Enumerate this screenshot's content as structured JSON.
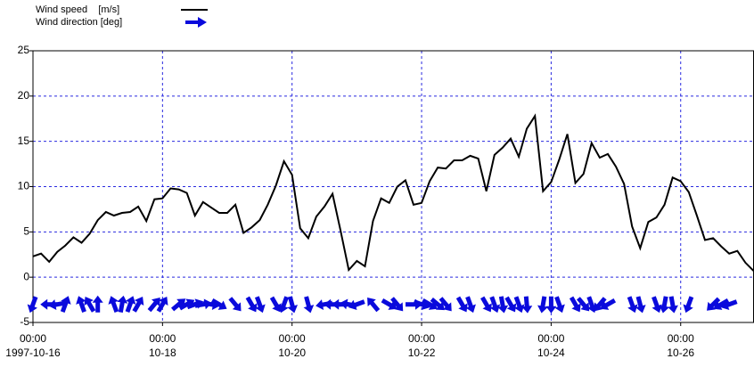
{
  "chart_data": {
    "type": "line",
    "x": [
      "1997-10-16 00:00",
      "1997-10-16 03:00",
      "1997-10-16 06:00",
      "1997-10-16 09:00",
      "1997-10-16 12:00",
      "1997-10-16 15:00",
      "1997-10-16 18:00",
      "1997-10-16 21:00",
      "1997-10-17 00:00",
      "1997-10-17 03:00",
      "1997-10-17 06:00",
      "1997-10-17 09:00",
      "1997-10-17 12:00",
      "1997-10-17 15:00",
      "1997-10-17 18:00",
      "1997-10-17 21:00",
      "1997-10-18 00:00",
      "1997-10-18 03:00",
      "1997-10-18 06:00",
      "1997-10-18 09:00",
      "1997-10-18 12:00",
      "1997-10-18 15:00",
      "1997-10-18 18:00",
      "1997-10-18 21:00",
      "1997-10-19 00:00",
      "1997-10-19 03:00",
      "1997-10-19 06:00",
      "1997-10-19 09:00",
      "1997-10-19 12:00",
      "1997-10-19 15:00",
      "1997-10-19 18:00",
      "1997-10-19 21:00",
      "1997-10-20 00:00",
      "1997-10-20 03:00",
      "1997-10-20 06:00",
      "1997-10-20 09:00",
      "1997-10-20 12:00",
      "1997-10-20 15:00",
      "1997-10-20 18:00",
      "1997-10-20 21:00",
      "1997-10-21 00:00",
      "1997-10-21 03:00",
      "1997-10-21 06:00",
      "1997-10-21 09:00",
      "1997-10-21 12:00",
      "1997-10-21 15:00",
      "1997-10-21 18:00",
      "1997-10-21 21:00",
      "1997-10-22 00:00",
      "1997-10-22 03:00",
      "1997-10-22 06:00",
      "1997-10-22 09:00",
      "1997-10-22 12:00",
      "1997-10-22 15:00",
      "1997-10-22 18:00",
      "1997-10-22 21:00",
      "1997-10-23 00:00",
      "1997-10-23 03:00",
      "1997-10-23 06:00",
      "1997-10-23 09:00",
      "1997-10-23 12:00",
      "1997-10-23 15:00",
      "1997-10-23 18:00",
      "1997-10-23 21:00",
      "1997-10-24 00:00",
      "1997-10-24 03:00",
      "1997-10-24 06:00",
      "1997-10-24 09:00",
      "1997-10-24 12:00",
      "1997-10-24 15:00",
      "1997-10-24 18:00",
      "1997-10-24 21:00",
      "1997-10-25 00:00",
      "1997-10-25 03:00",
      "1997-10-25 06:00",
      "1997-10-25 09:00",
      "1997-10-25 12:00",
      "1997-10-25 15:00",
      "1997-10-25 18:00",
      "1997-10-25 21:00",
      "1997-10-26 00:00",
      "1997-10-26 03:00",
      "1997-10-26 06:00",
      "1997-10-26 09:00",
      "1997-10-26 12:00",
      "1997-10-26 15:00",
      "1997-10-26 18:00",
      "1997-10-26 21:00",
      "1997-10-27 00:00",
      "1997-10-27 03:00"
    ],
    "series": [
      {
        "name": "Wind speed    [m/s]",
        "color": "#000000",
        "values": [
          2.3,
          2.6,
          1.7,
          2.8,
          3.5,
          4.4,
          3.8,
          4.8,
          6.3,
          7.2,
          6.8,
          7.1,
          7.2,
          7.8,
          6.2,
          8.6,
          8.7,
          9.8,
          9.7,
          9.3,
          6.8,
          8.3,
          7.7,
          7.1,
          7.1,
          8.0,
          4.9,
          5.5,
          6.3,
          8.0,
          10.1,
          12.8,
          11.3,
          5.4,
          4.3,
          6.7,
          7.8,
          9.2,
          5.1,
          0.8,
          1.8,
          1.2,
          6.2,
          8.7,
          8.2,
          10.0,
          10.7,
          8.0,
          8.2,
          10.6,
          12.1,
          12.0,
          12.9,
          12.9,
          13.4,
          13.1,
          9.5,
          13.5,
          14.3,
          15.3,
          13.3,
          16.4,
          17.8,
          9.5,
          10.5,
          13.0,
          15.8,
          10.4,
          11.4,
          14.8,
          13.2,
          13.6,
          12.2,
          10.3,
          5.6,
          3.2,
          6.1,
          6.6,
          8.0,
          11.0,
          10.6,
          9.4,
          6.8,
          4.1,
          4.3,
          3.4,
          2.6,
          2.9,
          1.6,
          0.7
        ]
      },
      {
        "name": "Wind direction [deg]",
        "color": "#0a0adc",
        "values": [
          200,
          null,
          270,
          260,
          20,
          null,
          340,
          330,
          0,
          null,
          340,
          10,
          20,
          30,
          null,
          40,
          30,
          null,
          50,
          60,
          70,
          80,
          100,
          120,
          null,
          140,
          null,
          150,
          160,
          null,
          150,
          200,
          165,
          null,
          165,
          null,
          260,
          270,
          270,
          280,
          250,
          null,
          320,
          null,
          120,
          140,
          null,
          90,
          110,
          120,
          130,
          140,
          null,
          150,
          160,
          null,
          150,
          160,
          170,
          150,
          160,
          175,
          null,
          190,
          180,
          160,
          null,
          150,
          140,
          160,
          220,
          240,
          null,
          null,
          160,
          165,
          null,
          160,
          190,
          170,
          null,
          200,
          null,
          null,
          225,
          240,
          250,
          null,
          null,
          null
        ]
      }
    ],
    "xlim": [
      "1997-10-16 00:00",
      "1997-10-27 03:00"
    ],
    "xticks": [
      {
        "value": "1997-10-16 00:00",
        "label": [
          "00:00",
          "1997-10-16"
        ]
      },
      {
        "value": "1997-10-18 00:00",
        "label": [
          "00:00",
          "10-18"
        ]
      },
      {
        "value": "1997-10-20 00:00",
        "label": [
          "00:00",
          "10-20"
        ]
      },
      {
        "value": "1997-10-22 00:00",
        "label": [
          "00:00",
          "10-22"
        ]
      },
      {
        "value": "1997-10-24 00:00",
        "label": [
          "00:00",
          "10-24"
        ]
      },
      {
        "value": "1997-10-26 00:00",
        "label": [
          "00:00",
          "10-26"
        ]
      }
    ],
    "ylim": [
      -5,
      25
    ],
    "yticks": [
      -5,
      0,
      5,
      10,
      15,
      20,
      25
    ],
    "grid": true
  }
}
